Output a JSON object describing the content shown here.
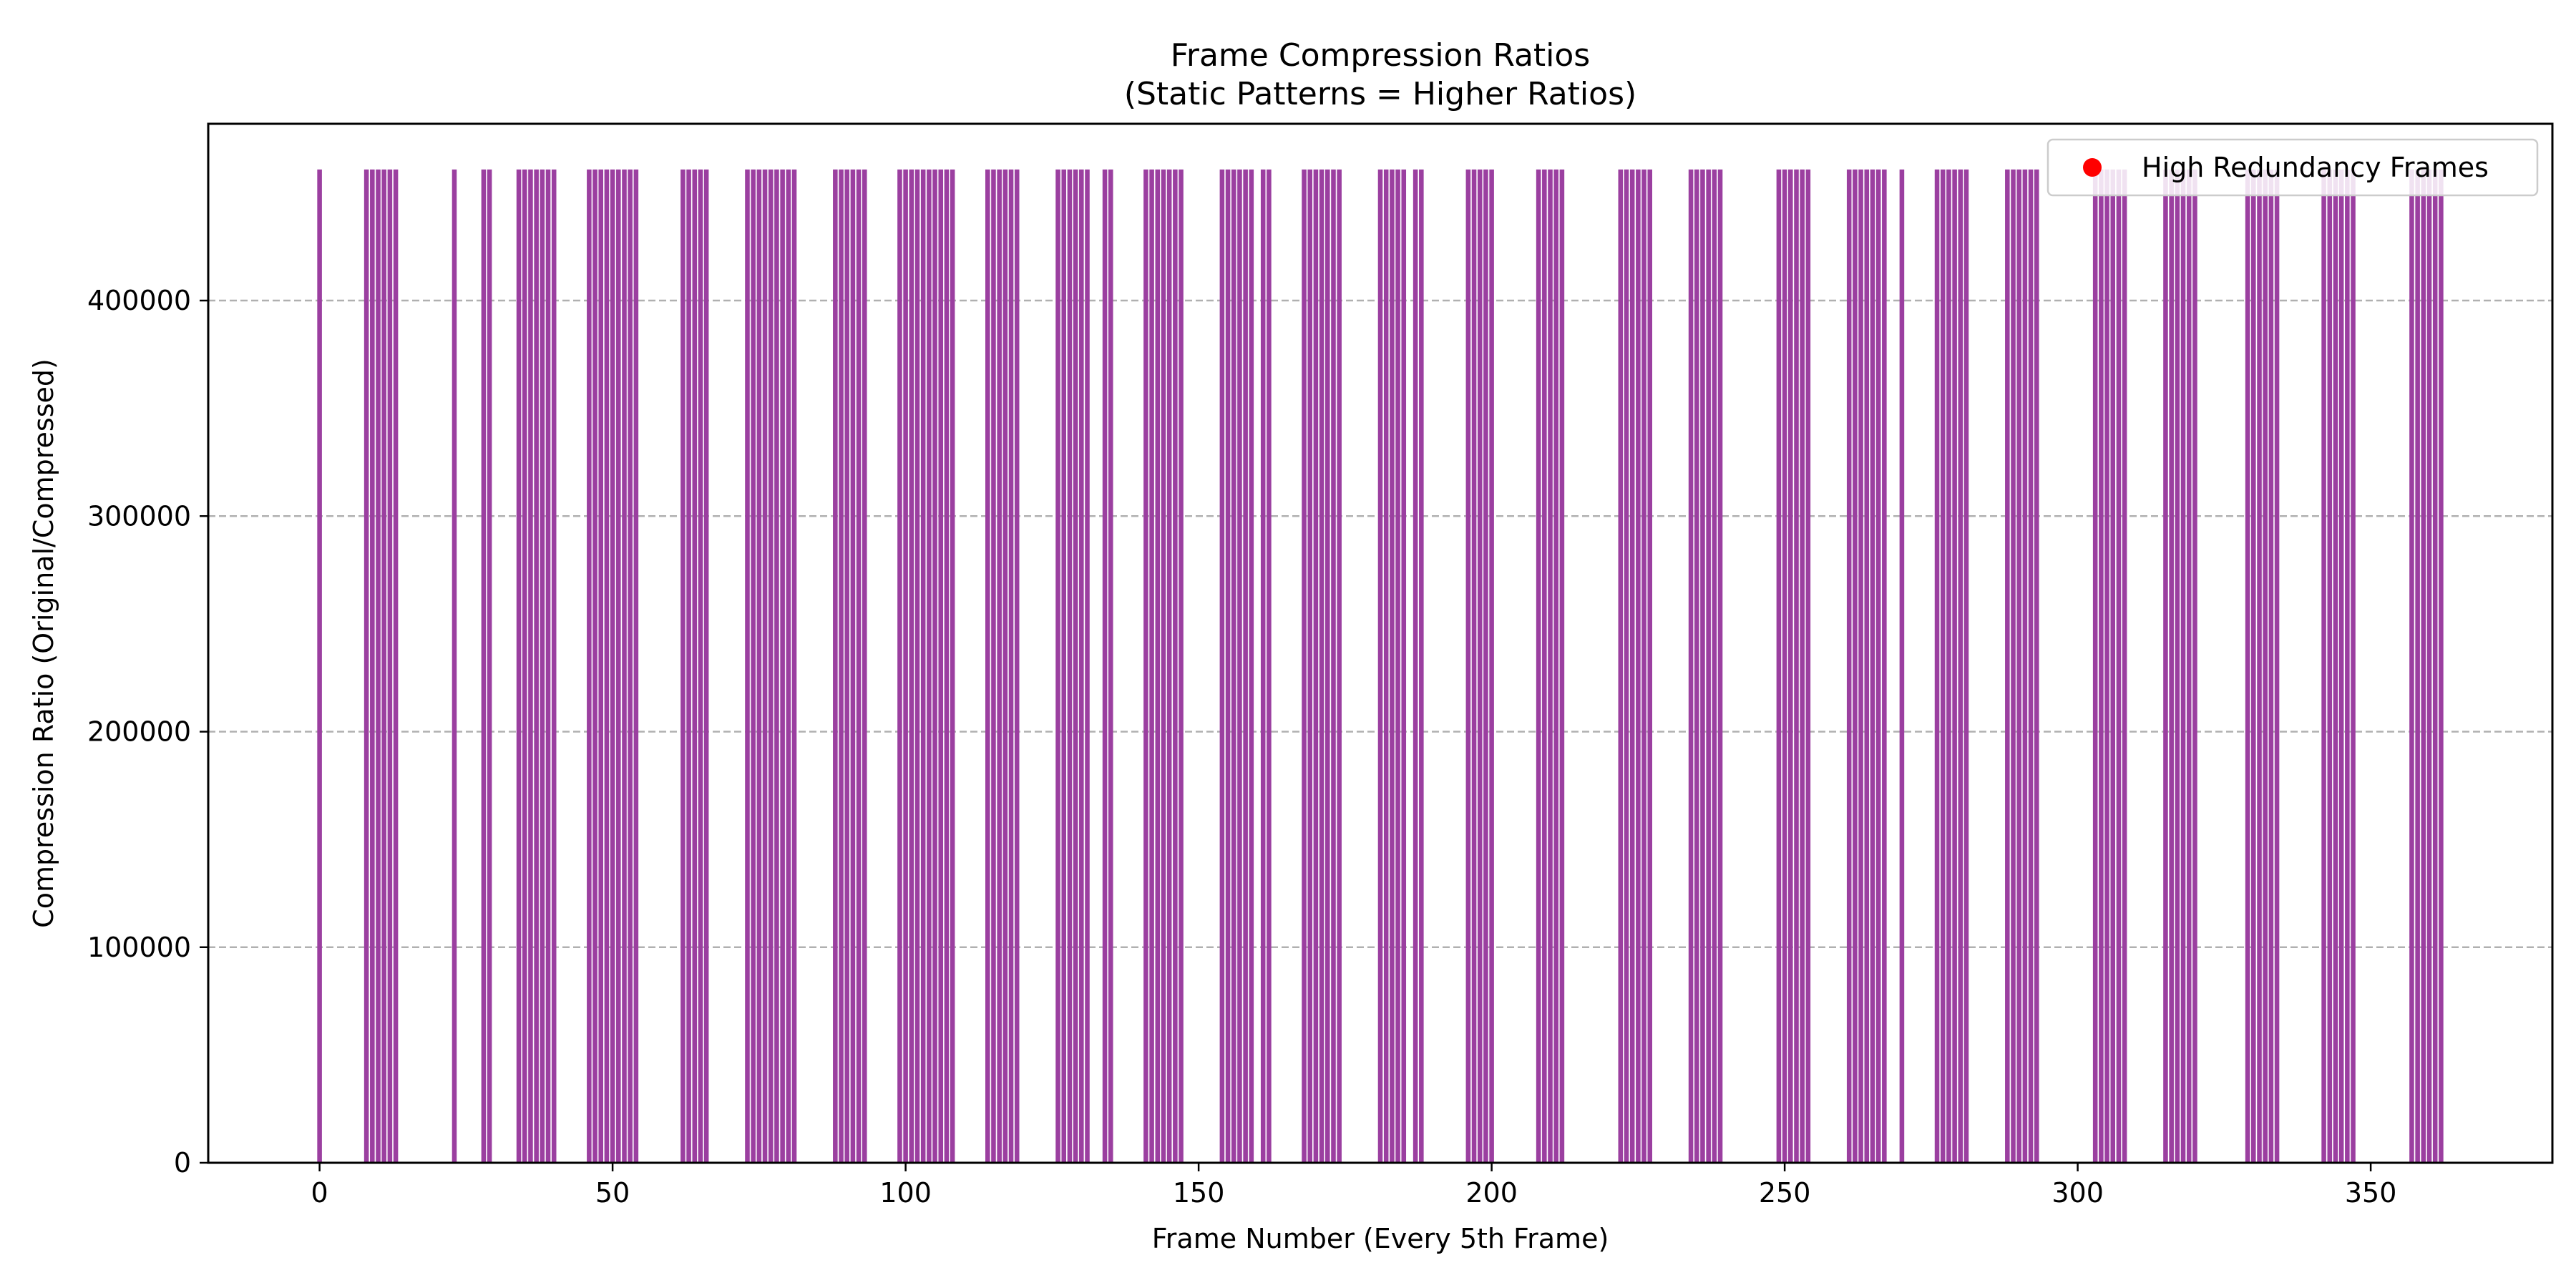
{
  "chart_data": {
    "type": "bar",
    "title": "Frame Compression Ratios",
    "subtitle": "(Static Patterns = Higher Ratios)",
    "xlabel": "Frame Number (Every 5th Frame)",
    "ylabel": "Compression Ratio (Original/Compressed)",
    "xlim": [
      -19,
      381
    ],
    "ylim": [
      0,
      482000
    ],
    "xticks": [
      0,
      50,
      100,
      150,
      200,
      250,
      300,
      350
    ],
    "yticks": [
      0,
      100000,
      200000,
      300000,
      400000
    ],
    "grid": "y-dashed",
    "bar_color": "#9b3fa0",
    "bar_value": 460800,
    "x": [
      0,
      8,
      9,
      10,
      11,
      12,
      13,
      23,
      28,
      29,
      34,
      35,
      36,
      37,
      38,
      39,
      40,
      46,
      47,
      48,
      49,
      50,
      51,
      52,
      53,
      54,
      62,
      63,
      64,
      65,
      66,
      73,
      74,
      75,
      76,
      77,
      78,
      79,
      80,
      81,
      88,
      89,
      90,
      91,
      92,
      93,
      99,
      100,
      101,
      102,
      103,
      104,
      105,
      106,
      107,
      108,
      114,
      115,
      116,
      117,
      118,
      119,
      126,
      127,
      128,
      129,
      130,
      131,
      134,
      135,
      141,
      142,
      143,
      144,
      145,
      146,
      147,
      154,
      155,
      156,
      157,
      158,
      159,
      161,
      162,
      168,
      169,
      170,
      171,
      172,
      173,
      174,
      181,
      182,
      183,
      184,
      185,
      187,
      188,
      196,
      197,
      198,
      199,
      200,
      208,
      209,
      210,
      211,
      212,
      222,
      223,
      224,
      225,
      226,
      227,
      234,
      235,
      236,
      237,
      238,
      239,
      249,
      250,
      251,
      252,
      253,
      254,
      261,
      262,
      263,
      264,
      265,
      266,
      267,
      270,
      276,
      277,
      278,
      279,
      280,
      281,
      288,
      289,
      290,
      291,
      292,
      293,
      303,
      304,
      305,
      306,
      307,
      308,
      315,
      316,
      317,
      318,
      319,
      320,
      329,
      330,
      331,
      332,
      333,
      334,
      342,
      343,
      344,
      345,
      346,
      347,
      357,
      358,
      359,
      360,
      361,
      362
    ],
    "legend": {
      "label": "High Redundancy Frames",
      "marker_color": "#ff0000",
      "position": "upper right"
    }
  }
}
